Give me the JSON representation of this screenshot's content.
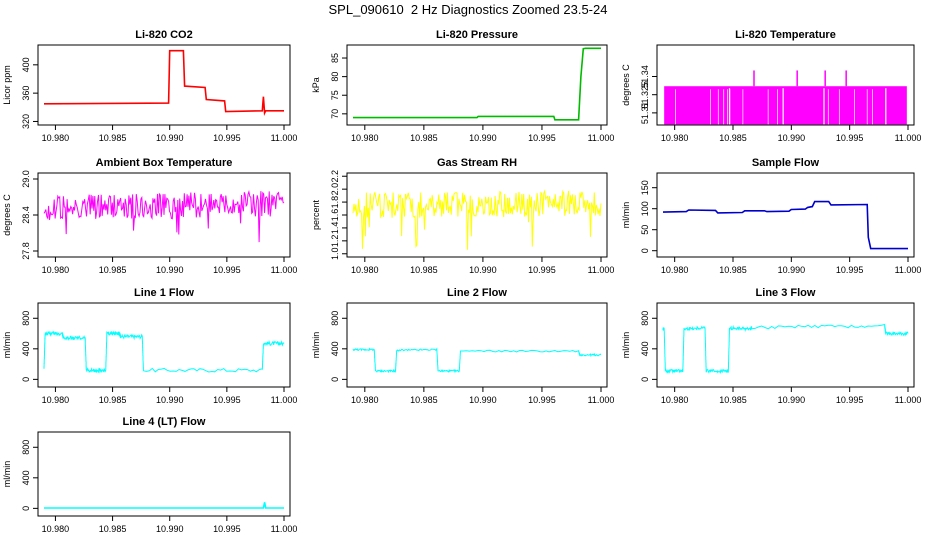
{
  "title": "SPL_090610  2 Hz Diagnostics Zoomed 23.5-24",
  "colors": {
    "co2": "#ff0000",
    "pressure": "#00bb00",
    "temperature": "#ff00ff",
    "box_temperature": "#ff00ff",
    "rh": "#ffff00",
    "sample_flow": "#0000cc",
    "line_flow": "#00ffff"
  },
  "chart_data": [
    {
      "type": "line",
      "title": "Li-820 CO2",
      "ylabel": "Licor ppm",
      "color": "#ff0000",
      "xlim": [
        10.979,
        11.0
      ],
      "ylim": [
        315,
        428
      ],
      "xticks": [
        "10.980",
        "10.985",
        "10.990",
        "10.995",
        "11.000"
      ],
      "yticks": [
        320,
        360,
        400
      ],
      "yticklabels": [
        "320",
        "360",
        "400"
      ],
      "x": [
        10.979,
        10.9899,
        10.99,
        10.9912,
        10.9913,
        10.9931,
        10.9932,
        10.9948,
        10.9949,
        10.9981,
        10.9982,
        10.9983,
        10.9984,
        11.0
      ],
      "y": [
        345,
        346,
        420,
        420,
        370,
        368,
        351,
        349,
        334,
        335,
        355,
        332,
        335,
        335
      ]
    },
    {
      "type": "line",
      "title": "Li-820 Pressure",
      "ylabel": "kPa",
      "color": "#00bb00",
      "xlim": [
        10.979,
        11.0
      ],
      "ylim": [
        67,
        88.5
      ],
      "xticks": [
        "10.980",
        "10.985",
        "10.990",
        "10.995",
        "11.000"
      ],
      "yticks": [
        70,
        75,
        80,
        85
      ],
      "yticklabels": [
        "70",
        "75",
        "80",
        "85"
      ],
      "x": [
        10.979,
        10.9895,
        10.9896,
        10.996,
        10.9961,
        10.9981,
        10.9983,
        10.9985,
        10.9987,
        11.0
      ],
      "y": [
        69,
        69,
        69.3,
        69.3,
        68.4,
        68.4,
        80,
        87.5,
        87.6,
        87.6
      ]
    },
    {
      "type": "area",
      "title": "Li-820 Temperature",
      "ylabel": "degrees C",
      "color": "#ff00ff",
      "xlim": [
        10.979,
        11.0
      ],
      "ylim": [
        51.3,
        51.366
      ],
      "xticks": [
        "10.980",
        "10.985",
        "10.990",
        "10.995",
        "11.000"
      ],
      "yticks": [
        51.31,
        51.325,
        51.34
      ],
      "yticklabels": [
        "51.31",
        "51.325",
        "51.34"
      ],
      "x": [
        10.979,
        11.0
      ],
      "y": [
        51.332,
        51.332
      ],
      "spikes_x": [
        10.9868,
        10.9905,
        10.9929,
        10.9947
      ],
      "spikes_y": 51.345,
      "gaps_x": [
        10.9847,
        10.9893,
        10.9928,
        10.9981
      ]
    },
    {
      "type": "line",
      "title": "Ambient Box Temperature",
      "ylabel": "degrees C",
      "color": "#ff00ff",
      "xlim": [
        10.979,
        11.0
      ],
      "ylim": [
        27.7,
        29.1
      ],
      "xticks": [
        "10.980",
        "10.985",
        "10.990",
        "10.995",
        "11.000"
      ],
      "yticks": [
        27.8,
        28.4,
        29.0
      ],
      "yticklabels": [
        "27.8",
        "28.4",
        "29.0"
      ],
      "x": [
        10.979,
        11.0
      ],
      "y": [
        28.5,
        28.6
      ],
      "noise": 0.22
    },
    {
      "type": "line",
      "title": "Gas Stream RH",
      "ylabel": "percent",
      "color": "#ffff00",
      "xlim": [
        10.979,
        11.0
      ],
      "ylim": [
        0.95,
        2.25
      ],
      "xticks": [
        "10.980",
        "10.985",
        "10.990",
        "10.995",
        "11.000"
      ],
      "yticks": [
        1.0,
        1.2,
        1.4,
        1.6,
        1.8,
        2.0,
        2.2
      ],
      "yticklabels": [
        "1.0",
        "1.2",
        "1.4",
        "1.6",
        "1.8",
        "2.0",
        "2.2"
      ],
      "x": [
        10.979,
        11.0
      ],
      "y": [
        1.75,
        1.78
      ],
      "noise": 0.2
    },
    {
      "type": "line",
      "title": "Sample Flow",
      "ylabel": "ml/min",
      "color": "#0000cc",
      "xlim": [
        10.979,
        11.0
      ],
      "ylim": [
        -15,
        185
      ],
      "xticks": [
        "10.980",
        "10.985",
        "10.990",
        "10.995",
        "11.000"
      ],
      "yticks": [
        0,
        50,
        100,
        150
      ],
      "yticklabels": [
        "0",
        "50",
        "100",
        "150"
      ],
      "x": [
        10.979,
        10.981,
        10.9812,
        10.9835,
        10.9837,
        10.9858,
        10.986,
        10.9877,
        10.9879,
        10.9898,
        10.99,
        10.9912,
        10.9914,
        10.9918,
        10.992,
        10.9932,
        10.9934,
        10.9965,
        10.9966,
        10.9968,
        11.0
      ],
      "y": [
        92,
        93,
        97,
        96,
        90,
        91,
        95,
        95,
        93,
        94,
        98,
        99,
        103,
        105,
        117,
        117,
        109,
        110,
        32,
        5,
        5
      ]
    },
    {
      "type": "line",
      "title": "Line 1 Flow",
      "ylabel": "ml/min",
      "color": "#00ffff",
      "xlim": [
        10.979,
        11.0
      ],
      "ylim": [
        -100,
        1000
      ],
      "xticks": [
        "10.980",
        "10.985",
        "10.990",
        "10.995",
        "11.000"
      ],
      "yticks": [
        0,
        400,
        800
      ],
      "yticklabels": [
        "0",
        "400",
        "800"
      ],
      "x": [
        10.979,
        10.9791,
        10.9806,
        10.9807,
        10.9826,
        10.9827,
        10.9844,
        10.9845,
        10.9856,
        10.9857,
        10.9876,
        10.9877,
        10.9981,
        10.9982,
        11.0
      ],
      "y": [
        150,
        600,
        600,
        540,
        540,
        120,
        120,
        600,
        600,
        560,
        560,
        120,
        120,
        470,
        470
      ],
      "noise": 25
    },
    {
      "type": "line",
      "title": "Line 2 Flow",
      "ylabel": "ml/min",
      "color": "#00ffff",
      "xlim": [
        10.979,
        11.0
      ],
      "ylim": [
        -100,
        1000
      ],
      "xticks": [
        "10.980",
        "10.985",
        "10.990",
        "10.995",
        "11.000"
      ],
      "yticks": [
        0,
        400,
        800
      ],
      "yticklabels": [
        "0",
        "400",
        "800"
      ],
      "x": [
        10.979,
        10.9808,
        10.9809,
        10.9826,
        10.9827,
        10.9861,
        10.9862,
        10.988,
        10.9881,
        10.9981,
        10.9982,
        11.0
      ],
      "y": [
        390,
        390,
        110,
        110,
        380,
        390,
        110,
        110,
        370,
        370,
        320,
        320
      ],
      "noise": 12
    },
    {
      "type": "line",
      "title": "Line 3 Flow",
      "ylabel": "ml/min",
      "color": "#00ffff",
      "xlim": [
        10.979,
        11.0
      ],
      "ylim": [
        -100,
        1000
      ],
      "xticks": [
        "10.980",
        "10.985",
        "10.990",
        "10.995",
        "11.000"
      ],
      "yticks": [
        0,
        400,
        800
      ],
      "yticklabels": [
        "0",
        "400",
        "800"
      ],
      "x": [
        10.979,
        10.9791,
        10.9792,
        10.9807,
        10.9808,
        10.9826,
        10.9827,
        10.9846,
        10.9847,
        10.9865,
        10.9866,
        10.998,
        10.9981,
        11.0
      ],
      "y": [
        660,
        660,
        110,
        110,
        660,
        680,
        110,
        110,
        670,
        660,
        680,
        700,
        600,
        600
      ],
      "noise": 20
    },
    {
      "type": "line",
      "title": "Line 4 (LT) Flow",
      "ylabel": "ml/min",
      "color": "#00ffff",
      "xlim": [
        10.979,
        11.0
      ],
      "ylim": [
        -100,
        1000
      ],
      "xticks": [
        "10.980",
        "10.985",
        "10.990",
        "10.995",
        "11.000"
      ],
      "yticks": [
        0,
        400,
        800
      ],
      "yticklabels": [
        "0",
        "400",
        "800"
      ],
      "x": [
        10.979,
        10.9982,
        10.9983,
        10.9984,
        10.9985,
        11.0
      ],
      "y": [
        5,
        5,
        80,
        5,
        5,
        5
      ]
    }
  ]
}
